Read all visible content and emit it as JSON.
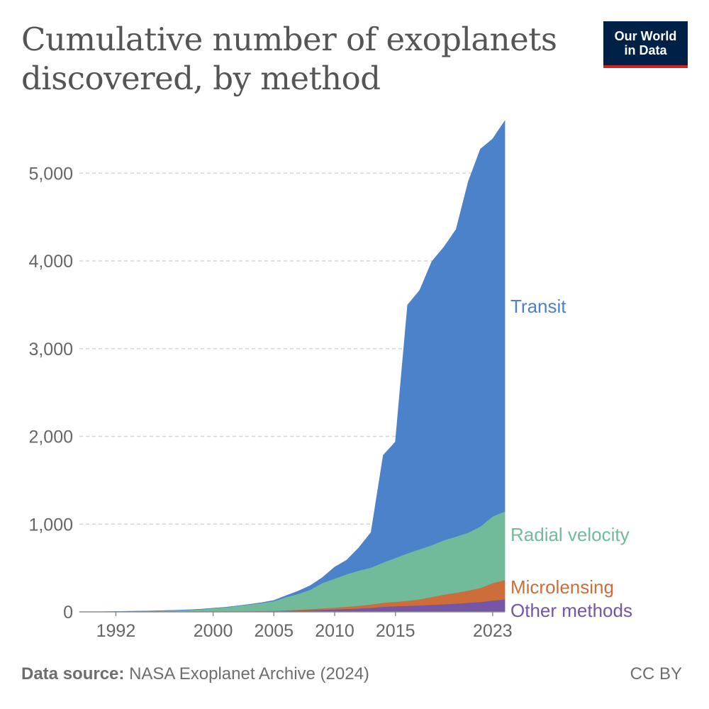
{
  "title": "Cumulative number of exoplanets discovered, by method",
  "logo": {
    "line1": "Our World",
    "line2": "in Data"
  },
  "footer": {
    "source_label": "Data source:",
    "source_text": "NASA Exoplanet Archive (2024)",
    "license": "CC BY"
  },
  "colors": {
    "Transit": "#4c82c9",
    "Radial velocity": "#71bb9b",
    "Microlensing": "#cd6e3a",
    "Other methods": "#7555a6"
  },
  "chart_data": {
    "type": "area",
    "stacked": true,
    "x": [
      1989,
      1990,
      1991,
      1992,
      1993,
      1994,
      1995,
      1996,
      1997,
      1998,
      1999,
      2000,
      2001,
      2002,
      2003,
      2004,
      2005,
      2006,
      2007,
      2008,
      2009,
      2010,
      2011,
      2012,
      2013,
      2014,
      2015,
      2016,
      2017,
      2018,
      2019,
      2020,
      2021,
      2022,
      2023,
      2024
    ],
    "x_ticks": [
      1992,
      2000,
      2005,
      2010,
      2015,
      2023
    ],
    "y_ticks": [
      0,
      1000,
      2000,
      3000,
      4000,
      5000
    ],
    "y_tick_labels": [
      "0",
      "1,000",
      "2,000",
      "3,000",
      "4,000",
      "5,000"
    ],
    "xlim": [
      1989,
      2024
    ],
    "ylim": [
      0,
      5600
    ],
    "grid": "horizontal-dashed",
    "legend": "inline-right",
    "series": [
      {
        "name": "Other methods",
        "values": [
          0,
          0,
          0,
          2,
          2,
          3,
          3,
          4,
          4,
          5,
          5,
          6,
          6,
          8,
          9,
          10,
          11,
          14,
          18,
          22,
          26,
          30,
          35,
          40,
          48,
          60,
          66,
          70,
          75,
          82,
          88,
          95,
          105,
          115,
          130,
          145
        ]
      },
      {
        "name": "Microlensing",
        "values": [
          0,
          0,
          0,
          0,
          0,
          0,
          0,
          0,
          0,
          0,
          0,
          0,
          0,
          0,
          1,
          2,
          3,
          5,
          8,
          12,
          15,
          20,
          25,
          32,
          38,
          45,
          50,
          58,
          70,
          90,
          110,
          125,
          140,
          160,
          200,
          220
        ]
      },
      {
        "name": "Radial velocity",
        "values": [
          1,
          1,
          1,
          2,
          4,
          5,
          7,
          10,
          14,
          18,
          25,
          35,
          45,
          60,
          75,
          90,
          110,
          150,
          180,
          220,
          290,
          330,
          370,
          400,
          420,
          460,
          500,
          540,
          570,
          590,
          620,
          640,
          660,
          700,
          760,
          780
        ]
      },
      {
        "name": "Transit",
        "values": [
          0,
          0,
          0,
          0,
          0,
          0,
          0,
          0,
          0,
          0,
          0,
          0,
          0,
          0,
          1,
          3,
          6,
          15,
          30,
          45,
          60,
          130,
          160,
          260,
          400,
          1220,
          1320,
          2830,
          2950,
          3230,
          3340,
          3500,
          4000,
          4300,
          4300,
          4450
        ]
      }
    ]
  }
}
